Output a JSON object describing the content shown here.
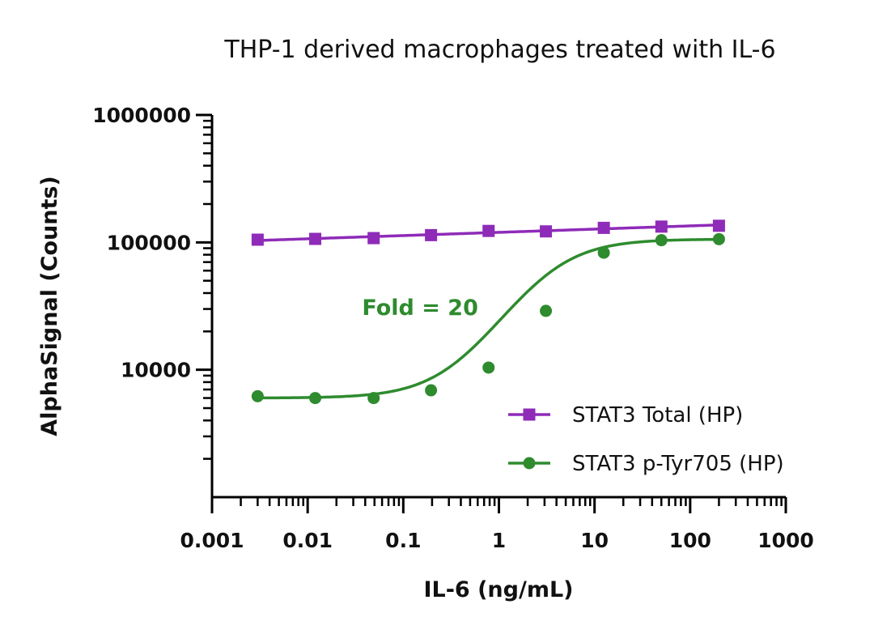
{
  "chart_data": {
    "type": "scatter",
    "title": "THP-1 derived macrophages treated with IL-6",
    "xlabel": "IL-6 (ng/mL)",
    "ylabel": "AlphaSignal (Counts)",
    "x_scale": "log",
    "y_scale": "log",
    "xlim": [
      0.001,
      1000
    ],
    "ylim": [
      1000,
      1000000
    ],
    "x_ticks": [
      0.001,
      0.01,
      0.1,
      1,
      10,
      100,
      1000
    ],
    "x_tick_labels": [
      "0.001",
      "0.01",
      "0.1",
      "1",
      "10",
      "100",
      "1000"
    ],
    "y_ticks": [
      10000,
      100000,
      1000000
    ],
    "y_tick_labels": [
      "10000",
      "100000",
      "1000000"
    ],
    "grid": false,
    "legend_position": "bottom-right",
    "series": [
      {
        "name": "STAT3 Total (HP)",
        "color": "#8e2bb8",
        "marker": "square",
        "x": [
          0.003,
          0.012,
          0.049,
          0.195,
          0.78,
          3.1,
          12.5,
          50,
          200
        ],
        "y": [
          105000,
          106500,
          108000,
          114000,
          123000,
          122000,
          130000,
          133000,
          135000
        ],
        "fit": "linear-log"
      },
      {
        "name": "STAT3 p-Tyr705 (HP)",
        "color": "#2e8b2e",
        "marker": "circle",
        "x": [
          0.003,
          0.012,
          0.049,
          0.195,
          0.78,
          3.1,
          12.5,
          50,
          200
        ],
        "y": [
          6200,
          6000,
          6000,
          6900,
          10400,
          29000,
          83000,
          104000,
          106000
        ],
        "fit": "sigmoid"
      }
    ],
    "annotations": [
      {
        "text": "Fold = 20",
        "x": 0.15,
        "y": 27000,
        "color": "#2e8b2e"
      }
    ]
  }
}
